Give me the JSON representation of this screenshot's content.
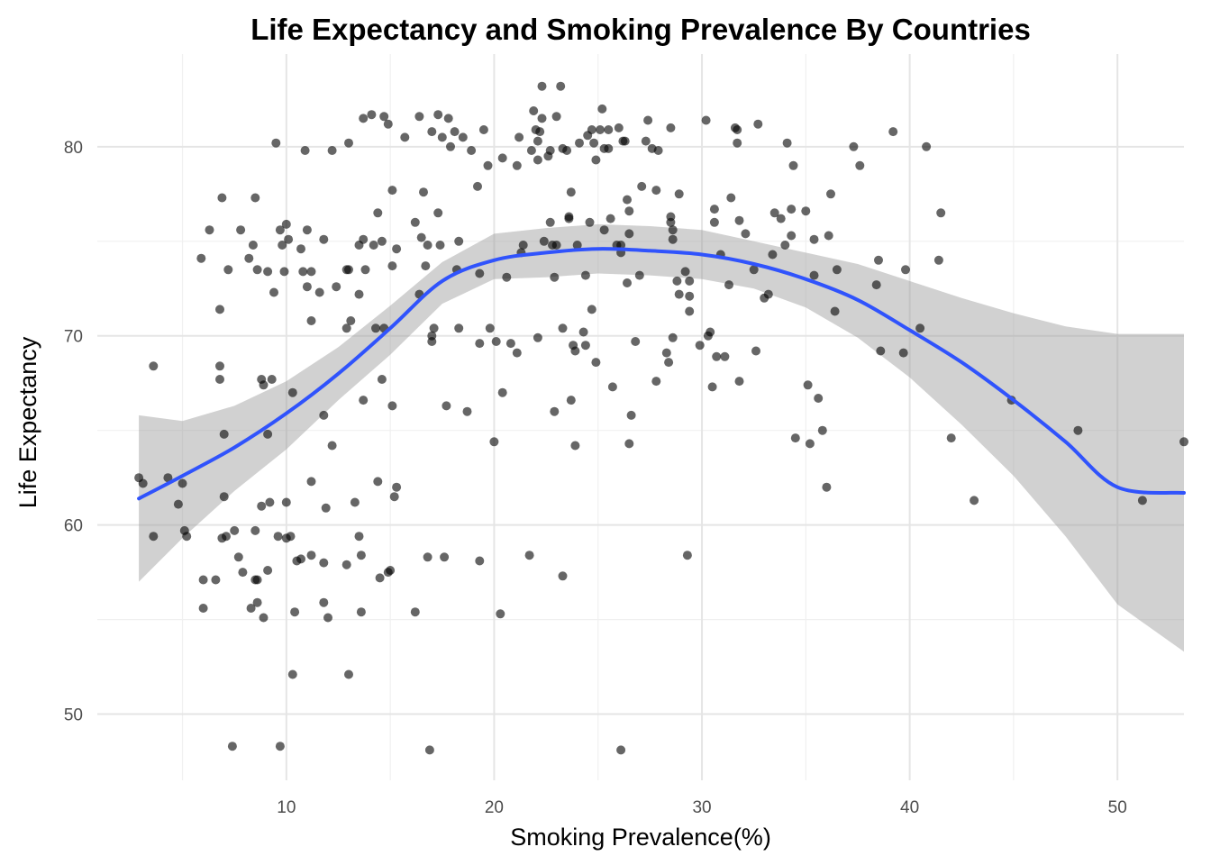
{
  "chart_data": {
    "type": "scatter",
    "title": "Life Expectancy and Smoking Prevalence By Countries",
    "xlabel": "Smoking Prevalence(%)",
    "ylabel": "Life Expectancy",
    "xlim": [
      0.9,
      53.2
    ],
    "ylim": [
      46.5,
      84.9
    ],
    "x_ticks": [
      10,
      20,
      30,
      40,
      50
    ],
    "y_ticks": [
      50,
      60,
      70,
      80
    ],
    "x_tick_labels": [
      "10",
      "20",
      "30",
      "40",
      "50"
    ],
    "y_tick_labels": [
      "50",
      "60",
      "70",
      "80"
    ],
    "grid": true,
    "legend": "none",
    "point_color": "#000000",
    "fit_color": "#3053fc",
    "band_color": "#999999",
    "points": [
      [
        2.9,
        62.5
      ],
      [
        3.1,
        62.2
      ],
      [
        3.6,
        68.4
      ],
      [
        3.6,
        59.4
      ],
      [
        4.3,
        62.5
      ],
      [
        4.8,
        61.1
      ],
      [
        5.0,
        62.2
      ],
      [
        5.1,
        59.7
      ],
      [
        5.2,
        59.4
      ],
      [
        5.9,
        74.1
      ],
      [
        6.0,
        57.1
      ],
      [
        6.0,
        55.6
      ],
      [
        6.3,
        75.6
      ],
      [
        6.6,
        57.1
      ],
      [
        6.8,
        68.4
      ],
      [
        6.8,
        67.7
      ],
      [
        6.8,
        71.4
      ],
      [
        6.9,
        77.3
      ],
      [
        6.9,
        59.3
      ],
      [
        7.0,
        64.8
      ],
      [
        7.0,
        61.5
      ],
      [
        7.1,
        59.4
      ],
      [
        7.2,
        73.5
      ],
      [
        7.4,
        48.3
      ],
      [
        7.5,
        59.7
      ],
      [
        7.7,
        58.3
      ],
      [
        7.8,
        75.6
      ],
      [
        7.9,
        57.5
      ],
      [
        8.2,
        74.1
      ],
      [
        8.3,
        55.6
      ],
      [
        8.4,
        74.8
      ],
      [
        8.5,
        77.3
      ],
      [
        8.5,
        59.7
      ],
      [
        8.5,
        57.1
      ],
      [
        8.6,
        73.5
      ],
      [
        8.6,
        55.9
      ],
      [
        8.6,
        57.1
      ],
      [
        8.8,
        67.7
      ],
      [
        8.8,
        61.0
      ],
      [
        8.9,
        67.4
      ],
      [
        8.9,
        55.1
      ],
      [
        9.1,
        73.4
      ],
      [
        9.1,
        64.8
      ],
      [
        9.1,
        57.6
      ],
      [
        9.2,
        61.2
      ],
      [
        9.3,
        67.7
      ],
      [
        9.4,
        72.3
      ],
      [
        9.5,
        80.2
      ],
      [
        9.6,
        59.4
      ],
      [
        9.7,
        75.6
      ],
      [
        9.7,
        48.3
      ],
      [
        9.8,
        74.8
      ],
      [
        9.9,
        73.4
      ],
      [
        10.0,
        75.9
      ],
      [
        10.0,
        61.2
      ],
      [
        10.0,
        59.3
      ],
      [
        10.1,
        75.1
      ],
      [
        10.2,
        59.4
      ],
      [
        10.3,
        67.0
      ],
      [
        10.3,
        52.1
      ],
      [
        10.4,
        55.4
      ],
      [
        10.5,
        58.1
      ],
      [
        10.7,
        74.6
      ],
      [
        10.7,
        58.2
      ],
      [
        10.8,
        73.4
      ],
      [
        10.9,
        79.8
      ],
      [
        11.0,
        72.6
      ],
      [
        11.0,
        75.6
      ],
      [
        11.2,
        73.4
      ],
      [
        11.2,
        70.8
      ],
      [
        11.2,
        62.3
      ],
      [
        11.2,
        58.4
      ],
      [
        11.6,
        72.3
      ],
      [
        11.8,
        75.1
      ],
      [
        11.8,
        65.8
      ],
      [
        11.8,
        58.0
      ],
      [
        11.8,
        55.9
      ],
      [
        11.9,
        60.9
      ],
      [
        12.0,
        55.1
      ],
      [
        12.2,
        79.8
      ],
      [
        12.2,
        64.2
      ],
      [
        12.4,
        72.6
      ],
      [
        12.9,
        73.5
      ],
      [
        12.9,
        70.4
      ],
      [
        12.9,
        57.9
      ],
      [
        13.0,
        80.2
      ],
      [
        13.0,
        73.5
      ],
      [
        13.0,
        52.1
      ],
      [
        13.1,
        70.8
      ],
      [
        13.3,
        61.2
      ],
      [
        13.5,
        74.8
      ],
      [
        13.5,
        72.2
      ],
      [
        13.5,
        59.4
      ],
      [
        13.6,
        58.4
      ],
      [
        13.6,
        55.4
      ],
      [
        13.7,
        81.5
      ],
      [
        13.7,
        75.1
      ],
      [
        13.7,
        66.6
      ],
      [
        13.8,
        73.5
      ],
      [
        14.1,
        81.7
      ],
      [
        14.2,
        74.8
      ],
      [
        14.3,
        70.4
      ],
      [
        14.4,
        76.5
      ],
      [
        14.4,
        62.3
      ],
      [
        14.5,
        57.2
      ],
      [
        14.6,
        75.0
      ],
      [
        14.6,
        67.7
      ],
      [
        14.7,
        81.6
      ],
      [
        14.7,
        70.4
      ],
      [
        14.9,
        81.2
      ],
      [
        14.9,
        57.5
      ],
      [
        15.0,
        57.6
      ],
      [
        15.1,
        73.7
      ],
      [
        15.1,
        77.7
      ],
      [
        15.1,
        66.3
      ],
      [
        15.2,
        61.5
      ],
      [
        15.3,
        74.6
      ],
      [
        15.3,
        62.0
      ],
      [
        15.7,
        80.5
      ],
      [
        16.2,
        76.0
      ],
      [
        16.2,
        55.4
      ],
      [
        16.4,
        81.6
      ],
      [
        16.4,
        72.2
      ],
      [
        16.5,
        75.2
      ],
      [
        16.6,
        77.6
      ],
      [
        16.7,
        73.7
      ],
      [
        16.8,
        74.8
      ],
      [
        16.8,
        58.3
      ],
      [
        16.9,
        48.1
      ],
      [
        17.0,
        80.8
      ],
      [
        17.0,
        70.0
      ],
      [
        17.0,
        69.7
      ],
      [
        17.1,
        70.4
      ],
      [
        17.3,
        81.7
      ],
      [
        17.3,
        76.5
      ],
      [
        17.4,
        74.8
      ],
      [
        17.5,
        80.5
      ],
      [
        17.6,
        58.3
      ],
      [
        17.7,
        66.3
      ],
      [
        17.8,
        81.5
      ],
      [
        17.9,
        80.0
      ],
      [
        18.1,
        80.8
      ],
      [
        18.2,
        73.5
      ],
      [
        18.3,
        75.0
      ],
      [
        18.3,
        70.4
      ],
      [
        18.5,
        80.5
      ],
      [
        18.7,
        66.0
      ],
      [
        18.9,
        79.8
      ],
      [
        19.2,
        77.9
      ],
      [
        19.3,
        73.3
      ],
      [
        19.3,
        69.6
      ],
      [
        19.3,
        58.1
      ],
      [
        19.5,
        80.9
      ],
      [
        19.7,
        79.0
      ],
      [
        19.8,
        70.4
      ],
      [
        20.0,
        64.4
      ],
      [
        20.1,
        69.7
      ],
      [
        20.3,
        55.3
      ],
      [
        20.4,
        79.4
      ],
      [
        20.4,
        67.0
      ],
      [
        20.6,
        73.1
      ],
      [
        20.8,
        69.6
      ],
      [
        21.1,
        69.1
      ],
      [
        21.1,
        79.0
      ],
      [
        21.2,
        80.5
      ],
      [
        21.3,
        74.4
      ],
      [
        21.4,
        74.8
      ],
      [
        21.7,
        58.4
      ],
      [
        21.8,
        79.8
      ],
      [
        21.9,
        81.9
      ],
      [
        22.0,
        80.9
      ],
      [
        22.1,
        80.3
      ],
      [
        22.1,
        79.3
      ],
      [
        22.1,
        69.9
      ],
      [
        22.2,
        80.8
      ],
      [
        22.3,
        83.2
      ],
      [
        22.3,
        81.5
      ],
      [
        22.4,
        75.0
      ],
      [
        22.6,
        79.5
      ],
      [
        22.7,
        79.8
      ],
      [
        22.7,
        76.0
      ],
      [
        22.8,
        74.8
      ],
      [
        22.9,
        73.1
      ],
      [
        22.9,
        66.0
      ],
      [
        23.0,
        74.8
      ],
      [
        23.0,
        81.6
      ],
      [
        23.2,
        83.2
      ],
      [
        23.3,
        70.4
      ],
      [
        23.3,
        79.9
      ],
      [
        23.3,
        57.3
      ],
      [
        23.5,
        79.8
      ],
      [
        23.6,
        76.2
      ],
      [
        23.6,
        76.3
      ],
      [
        23.7,
        77.6
      ],
      [
        23.7,
        66.6
      ],
      [
        23.8,
        69.5
      ],
      [
        23.9,
        69.2
      ],
      [
        23.9,
        64.2
      ],
      [
        24.0,
        74.8
      ],
      [
        24.1,
        80.2
      ],
      [
        24.3,
        70.2
      ],
      [
        24.4,
        69.5
      ],
      [
        24.4,
        73.2
      ],
      [
        24.5,
        80.6
      ],
      [
        24.6,
        76.0
      ],
      [
        24.7,
        71.4
      ],
      [
        24.7,
        80.9
      ],
      [
        24.8,
        80.2
      ],
      [
        24.9,
        68.6
      ],
      [
        24.9,
        79.3
      ],
      [
        25.1,
        80.9
      ],
      [
        25.2,
        82.0
      ],
      [
        25.3,
        79.9
      ],
      [
        25.3,
        75.6
      ],
      [
        25.5,
        79.9
      ],
      [
        25.5,
        80.9
      ],
      [
        25.6,
        76.2
      ],
      [
        25.7,
        67.3
      ],
      [
        25.9,
        74.8
      ],
      [
        26.0,
        81.0
      ],
      [
        26.1,
        74.8
      ],
      [
        26.1,
        74.4
      ],
      [
        26.1,
        48.1
      ],
      [
        26.2,
        80.3
      ],
      [
        26.3,
        80.3
      ],
      [
        26.4,
        77.2
      ],
      [
        26.4,
        72.8
      ],
      [
        26.5,
        75.4
      ],
      [
        26.5,
        76.6
      ],
      [
        26.5,
        64.3
      ],
      [
        26.6,
        65.8
      ],
      [
        26.8,
        69.7
      ],
      [
        27.0,
        73.2
      ],
      [
        27.1,
        77.9
      ],
      [
        27.3,
        80.3
      ],
      [
        27.4,
        81.4
      ],
      [
        27.6,
        79.9
      ],
      [
        27.8,
        67.6
      ],
      [
        27.8,
        77.7
      ],
      [
        27.9,
        79.8
      ],
      [
        28.3,
        69.1
      ],
      [
        28.4,
        68.6
      ],
      [
        28.5,
        76.0
      ],
      [
        28.5,
        76.3
      ],
      [
        28.5,
        81.0
      ],
      [
        28.6,
        75.6
      ],
      [
        28.6,
        75.1
      ],
      [
        28.6,
        69.9
      ],
      [
        28.8,
        72.9
      ],
      [
        28.9,
        77.5
      ],
      [
        28.9,
        72.2
      ],
      [
        29.2,
        73.4
      ],
      [
        29.3,
        58.4
      ],
      [
        29.4,
        72.9
      ],
      [
        29.4,
        71.3
      ],
      [
        29.4,
        72.1
      ],
      [
        29.9,
        69.5
      ],
      [
        30.2,
        81.4
      ],
      [
        30.3,
        70.0
      ],
      [
        30.4,
        70.2
      ],
      [
        30.5,
        67.3
      ],
      [
        30.6,
        76.0
      ],
      [
        30.6,
        76.7
      ],
      [
        30.7,
        68.9
      ],
      [
        30.9,
        74.3
      ],
      [
        31.1,
        68.9
      ],
      [
        31.3,
        72.7
      ],
      [
        31.4,
        77.3
      ],
      [
        31.6,
        81.0
      ],
      [
        31.7,
        80.9
      ],
      [
        31.7,
        80.2
      ],
      [
        31.8,
        76.1
      ],
      [
        31.8,
        67.6
      ],
      [
        32.1,
        75.4
      ],
      [
        32.5,
        73.5
      ],
      [
        32.6,
        69.2
      ],
      [
        32.7,
        81.2
      ],
      [
        33.0,
        72.0
      ],
      [
        33.2,
        72.2
      ],
      [
        33.4,
        74.3
      ],
      [
        33.5,
        76.5
      ],
      [
        33.8,
        76.2
      ],
      [
        34.0,
        74.8
      ],
      [
        34.1,
        80.2
      ],
      [
        34.3,
        76.7
      ],
      [
        34.3,
        75.3
      ],
      [
        34.4,
        79.0
      ],
      [
        34.5,
        64.6
      ],
      [
        35.0,
        76.6
      ],
      [
        35.1,
        67.4
      ],
      [
        35.2,
        64.3
      ],
      [
        35.4,
        75.1
      ],
      [
        35.4,
        73.2
      ],
      [
        35.6,
        66.7
      ],
      [
        35.8,
        65.0
      ],
      [
        36.0,
        62.0
      ],
      [
        36.1,
        75.3
      ],
      [
        36.2,
        77.5
      ],
      [
        36.4,
        71.3
      ],
      [
        36.5,
        73.5
      ],
      [
        37.3,
        80.0
      ],
      [
        37.6,
        79.0
      ],
      [
        38.4,
        72.7
      ],
      [
        38.5,
        74.0
      ],
      [
        38.6,
        69.2
      ],
      [
        39.2,
        80.8
      ],
      [
        39.7,
        69.1
      ],
      [
        39.8,
        73.5
      ],
      [
        40.5,
        70.4
      ],
      [
        40.8,
        80.0
      ],
      [
        41.4,
        74.0
      ],
      [
        41.5,
        76.5
      ],
      [
        42.0,
        64.6
      ],
      [
        43.1,
        61.3
      ],
      [
        44.9,
        66.6
      ],
      [
        48.1,
        65.0
      ],
      [
        51.2,
        61.3
      ],
      [
        53.2,
        64.4
      ]
    ],
    "fit_line": {
      "x": [
        2.9,
        5,
        7.5,
        10,
        12.5,
        15,
        17.5,
        20,
        22.5,
        25,
        27.5,
        30,
        32.5,
        35,
        37.5,
        40,
        42.5,
        45,
        47.5,
        50,
        53.2
      ],
      "y": [
        61.4,
        62.6,
        64.1,
        65.9,
        68.0,
        70.4,
        72.9,
        74.0,
        74.4,
        74.6,
        74.5,
        74.3,
        73.8,
        73.0,
        71.9,
        70.3,
        68.6,
        66.6,
        64.4,
        62.0,
        61.7
      ],
      "lower": [
        57.0,
        59.3,
        61.8,
        64.0,
        66.6,
        69.0,
        71.7,
        73.0,
        73.1,
        73.3,
        73.2,
        73.0,
        72.5,
        71.5,
        69.9,
        67.8,
        65.3,
        62.6,
        59.4,
        55.8,
        53.3
      ],
      "upper": [
        65.8,
        65.5,
        66.3,
        67.6,
        69.4,
        71.6,
        73.9,
        75.4,
        75.7,
        75.9,
        75.8,
        75.6,
        75.0,
        74.4,
        73.8,
        72.9,
        72.0,
        71.2,
        70.5,
        70.1,
        70.1
      ]
    }
  }
}
